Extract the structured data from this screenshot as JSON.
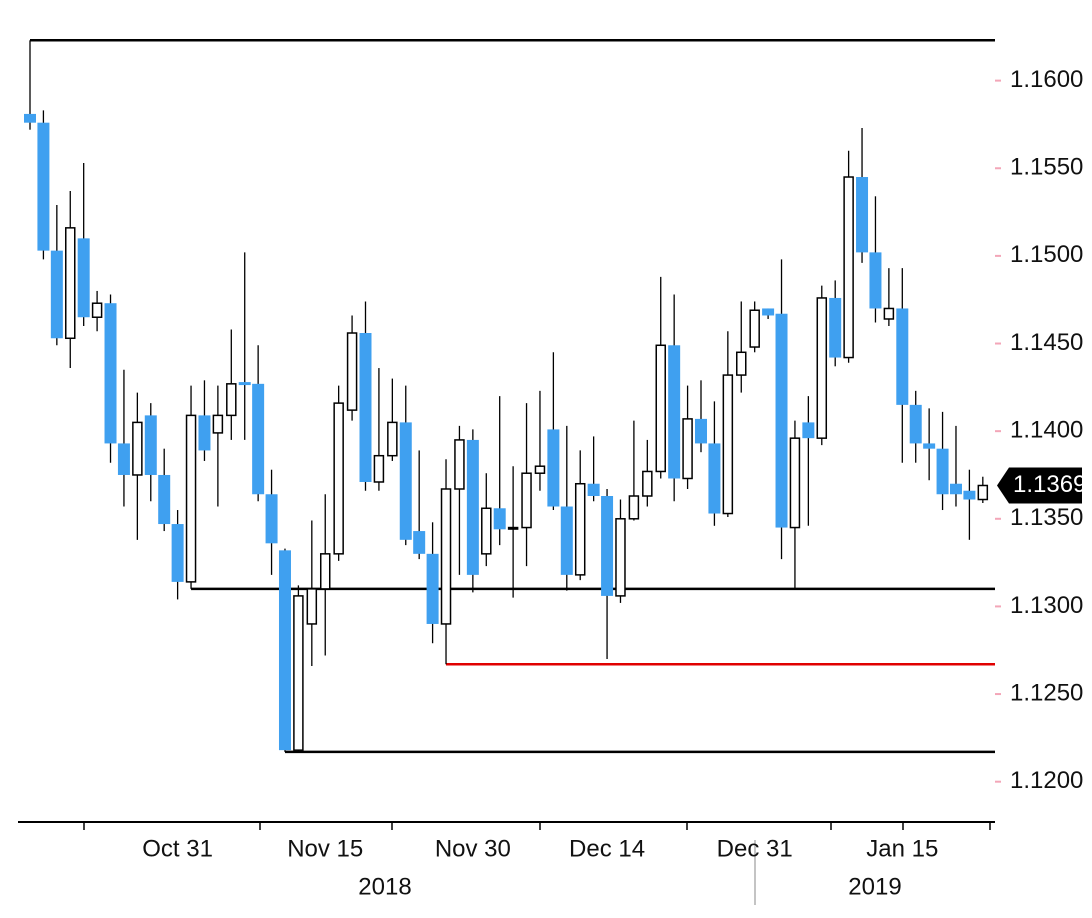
{
  "chart_data": {
    "type": "candlestick",
    "categories": [
      null,
      null,
      null,
      null,
      null,
      null,
      null,
      null,
      null,
      null,
      null,
      "Oct 31",
      null,
      null,
      null,
      null,
      null,
      null,
      null,
      null,
      null,
      null,
      "Nov 15",
      null,
      null,
      null,
      null,
      null,
      null,
      null,
      null,
      null,
      null,
      "Nov 30",
      null,
      null,
      null,
      null,
      null,
      null,
      null,
      null,
      null,
      "Dec 14",
      null,
      null,
      null,
      null,
      null,
      null,
      null,
      null,
      null,
      null,
      "Dec 31",
      null,
      null,
      null,
      null,
      null,
      null,
      null,
      null,
      null,
      null,
      "Jan 15",
      null,
      null,
      null,
      null,
      null,
      null
    ],
    "year_labels": [
      "2018",
      "2019"
    ],
    "open": [
      1.1581,
      1.1576,
      1.1503,
      1.1453,
      1.151,
      1.1465,
      1.1473,
      1.1393,
      1.1375,
      1.1409,
      1.1375,
      1.1347,
      1.1314,
      1.1409,
      1.1399,
      1.1409,
      1.1428,
      1.1427,
      1.1364,
      1.1332,
      1.1218,
      1.129,
      1.131,
      1.133,
      1.1412,
      1.1456,
      1.1371,
      1.1386,
      1.1405,
      1.1343,
      1.133,
      1.129,
      1.1367,
      1.1395,
      1.133,
      1.1356,
      1.1345,
      1.1345,
      1.1376,
      1.1401,
      1.1357,
      1.1318,
      1.137,
      1.1363,
      1.1306,
      1.135,
      1.1363,
      1.1377,
      1.1449,
      1.1373,
      1.1407,
      1.1393,
      1.1353,
      1.1432,
      1.1448,
      1.147,
      1.1467,
      1.1345,
      1.1405,
      1.1396,
      1.1476,
      1.1442,
      1.1545,
      1.1502,
      1.1464,
      1.147,
      1.1415,
      1.1393,
      1.139,
      1.137,
      1.1366,
      1.1361
    ],
    "high": [
      1.1623,
      1.1583,
      1.1529,
      1.1537,
      1.1553,
      1.148,
      1.1478,
      1.1435,
      1.1422,
      1.1416,
      1.139,
      1.1355,
      1.1426,
      1.1429,
      1.1426,
      1.1458,
      1.1502,
      1.1449,
      1.1378,
      1.1333,
      1.1312,
      1.1349,
      1.1364,
      1.1426,
      1.1466,
      1.1474,
      1.1436,
      1.143,
      1.1426,
      1.1389,
      1.1348,
      1.1384,
      1.1403,
      1.1401,
      1.1376,
      1.142,
      1.138,
      1.1416,
      1.1423,
      1.1445,
      1.1403,
      1.1389,
      1.1397,
      1.1367,
      1.1361,
      1.1406,
      1.1395,
      1.1488,
      1.1478,
      1.1426,
      1.1429,
      1.1417,
      1.1457,
      1.1474,
      1.1474,
      1.147,
      1.1498,
      1.1406,
      1.142,
      1.1483,
      1.1486,
      1.156,
      1.1573,
      1.1534,
      1.1493,
      1.1493,
      1.1423,
      1.1413,
      1.1411,
      1.1403,
      1.1378,
      1.1374
    ],
    "low": [
      1.1572,
      1.1498,
      1.1449,
      1.1436,
      1.146,
      1.1457,
      1.1382,
      1.1357,
      1.1338,
      1.136,
      1.1343,
      1.1304,
      1.131,
      1.1383,
      1.1357,
      1.1395,
      1.1395,
      1.136,
      1.1318,
      1.1217,
      1.1217,
      1.1266,
      1.1272,
      1.1326,
      1.1406,
      1.1366,
      1.1366,
      1.1383,
      1.1335,
      1.1327,
      1.1279,
      1.1267,
      1.1318,
      1.1308,
      1.1323,
      1.1335,
      1.1305,
      1.1323,
      1.1366,
      1.1355,
      1.1309,
      1.1315,
      1.136,
      1.127,
      1.1302,
      1.1349,
      1.1357,
      1.1373,
      1.136,
      1.1367,
      1.1388,
      1.1346,
      1.1351,
      1.1422,
      1.1445,
      1.1464,
      1.1327,
      1.131,
      1.1346,
      1.1392,
      1.1437,
      1.1439,
      1.1496,
      1.1462,
      1.146,
      1.1382,
      1.1382,
      1.1372,
      1.1355,
      1.1357,
      1.1338,
      1.1359
    ],
    "close": [
      1.1576,
      1.1503,
      1.1453,
      1.1516,
      1.1465,
      1.1473,
      1.1393,
      1.1375,
      1.1405,
      1.1375,
      1.1347,
      1.1314,
      1.1409,
      1.1389,
      1.1409,
      1.1427,
      1.1427,
      1.1364,
      1.1336,
      1.1218,
      1.1306,
      1.131,
      1.133,
      1.1416,
      1.1456,
      1.1371,
      1.1386,
      1.1405,
      1.1338,
      1.133,
      1.129,
      1.1367,
      1.1395,
      1.1318,
      1.1356,
      1.1344,
      1.1345,
      1.1376,
      1.138,
      1.1357,
      1.1318,
      1.137,
      1.1363,
      1.1306,
      1.135,
      1.1363,
      1.1377,
      1.1449,
      1.1373,
      1.1407,
      1.1393,
      1.1353,
      1.1432,
      1.1445,
      1.1469,
      1.1466,
      1.1345,
      1.1396,
      1.1396,
      1.1476,
      1.1442,
      1.1545,
      1.1502,
      1.147,
      1.147,
      1.1415,
      1.1393,
      1.139,
      1.1364,
      1.1364,
      1.1361,
      1.1369
    ],
    "up_color": "#ffffff",
    "down_color": "#3fa0f0",
    "levels": [
      {
        "value": 1.1623,
        "color": "#000000"
      },
      {
        "value": 1.1267,
        "color": "#e00000"
      },
      {
        "value": 1.131,
        "color": "#000000"
      },
      {
        "value": 1.1217,
        "color": "#000000"
      }
    ],
    "ylim": [
      1.1177,
      1.1646
    ],
    "yticks": [
      {
        "value": 1.12,
        "label": "1.1200"
      },
      {
        "value": 1.125,
        "label": "1.1250"
      },
      {
        "value": 1.13,
        "label": "1.1300"
      },
      {
        "value": 1.135,
        "label": "1.1350"
      },
      {
        "value": 1.14,
        "label": "1.1400"
      },
      {
        "value": 1.145,
        "label": "1.1450"
      },
      {
        "value": 1.15,
        "label": "1.1500"
      },
      {
        "value": 1.155,
        "label": "1.1550"
      },
      {
        "value": 1.16,
        "label": "1.1600"
      }
    ]
  }
}
